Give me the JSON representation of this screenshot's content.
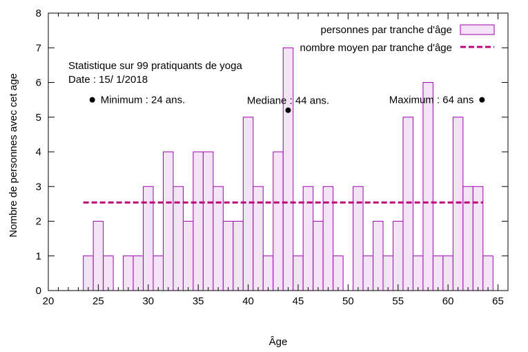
{
  "chart_data": {
    "type": "bar",
    "xlabel": "Âge",
    "ylabel": "Nombre de personnes avec cet age",
    "xlim": [
      20,
      66
    ],
    "ylim": [
      0,
      8
    ],
    "xticks": [
      20,
      25,
      30,
      35,
      40,
      45,
      50,
      55,
      60,
      65
    ],
    "yticks": [
      0,
      1,
      2,
      3,
      4,
      5,
      6,
      7,
      8
    ],
    "grid": false,
    "legend_position": "top-right",
    "bin_width": 1,
    "series": [
      {
        "name": "personnes par tranche d'âge",
        "kind": "histogram",
        "color": "#a000b0",
        "fill": "#f2e3f5",
        "x": [
          24,
          25,
          26,
          28,
          29,
          30,
          31,
          32,
          33,
          34,
          35,
          36,
          37,
          38,
          39,
          40,
          41,
          42,
          43,
          44,
          45,
          46,
          47,
          48,
          49,
          51,
          52,
          53,
          54,
          55,
          56,
          57,
          58,
          59,
          60,
          61,
          62,
          63,
          64
        ],
        "values": [
          1,
          2,
          1,
          1,
          1,
          3,
          1,
          4,
          3,
          2,
          4,
          4,
          3,
          2,
          2,
          5,
          3,
          1,
          4,
          7,
          1,
          3,
          2,
          3,
          1,
          3,
          1,
          2,
          1,
          2,
          5,
          1,
          6,
          1,
          1,
          5,
          3,
          3,
          1
        ]
      },
      {
        "name": "nombre moyen par tranche d'âge",
        "kind": "line",
        "style": "dashed",
        "color": "#c0007a",
        "x": [
          23.5,
          63.5
        ],
        "values": [
          2.54,
          2.54
        ]
      }
    ],
    "annotations": {
      "stat_title": "Statistique sur 99 pratiquants de yoga",
      "date": "Date : 15/ 1/2018",
      "points": [
        {
          "label": "Minimum : 24 ans.",
          "x": 24.4,
          "y": 5.5,
          "label_side": "right"
        },
        {
          "label": "Mediane : 44 ans.",
          "x": 44,
          "y": 5.2,
          "label_side": "above"
        },
        {
          "label": "Maximum : 64 ans",
          "x": 63.4,
          "y": 5.5,
          "label_side": "left"
        }
      ]
    }
  }
}
